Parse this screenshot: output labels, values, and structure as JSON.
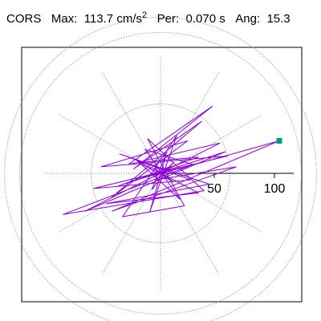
{
  "header": {
    "station": "CORS",
    "max_label": "Max:",
    "max_value": "113.7",
    "max_unit_base": "cm/s",
    "max_unit_exp": "2",
    "per_label": "Per:",
    "per_value": "0.070 s",
    "ang_label": "Ang:",
    "ang_value": "15.3"
  },
  "chart_data": {
    "type": "polar-trace",
    "title": "CORS   Max:  113.7 cm/s2  Per:  0.070 s   Ang:  15.3",
    "rings": [
      50,
      100,
      150
    ],
    "radial_lines_every_deg": 30,
    "tick_labels": [
      "50",
      "100"
    ],
    "trace_color": "#8b00d8",
    "marker_color": "#00a070",
    "peak_point": {
      "x": 109.6,
      "y": 30.0
    },
    "trace": [
      {
        "x": 0,
        "y": 0
      },
      {
        "x": 8,
        "y": 3
      },
      {
        "x": -6,
        "y": 5
      },
      {
        "x": 12,
        "y": -8
      },
      {
        "x": -20,
        "y": 10
      },
      {
        "x": 35,
        "y": 15
      },
      {
        "x": -40,
        "y": -12
      },
      {
        "x": 60,
        "y": 20
      },
      {
        "x": -70,
        "y": -35
      },
      {
        "x": 55,
        "y": 28
      },
      {
        "x": -30,
        "y": 8
      },
      {
        "x": 48,
        "y": 62
      },
      {
        "x": -25,
        "y": 4
      },
      {
        "x": 38,
        "y": 48
      },
      {
        "x": -45,
        "y": -22
      },
      {
        "x": 25,
        "y": 30
      },
      {
        "x": -55,
        "y": 6
      },
      {
        "x": 62,
        "y": 16
      },
      {
        "x": -62,
        "y": -14
      },
      {
        "x": 28,
        "y": -6
      },
      {
        "x": -38,
        "y": 18
      },
      {
        "x": 45,
        "y": -10
      },
      {
        "x": -50,
        "y": -28
      },
      {
        "x": 35,
        "y": -18
      },
      {
        "x": -22,
        "y": 12
      },
      {
        "x": 18,
        "y": -24
      },
      {
        "x": -14,
        "y": 22
      },
      {
        "x": 30,
        "y": 8
      },
      {
        "x": -90,
        "y": -38
      },
      {
        "x": 40,
        "y": -16
      },
      {
        "x": -12,
        "y": 32
      },
      {
        "x": 22,
        "y": -30
      },
      {
        "x": -35,
        "y": -40
      },
      {
        "x": 15,
        "y": 35
      },
      {
        "x": -10,
        "y": -36
      },
      {
        "x": 6,
        "y": 20
      },
      {
        "x": -8,
        "y": -15
      },
      {
        "x": 12,
        "y": 10
      },
      {
        "x": -4,
        "y": -6
      },
      {
        "x": 70,
        "y": 6
      },
      {
        "x": -45,
        "y": -35
      },
      {
        "x": 109.6,
        "y": 30.0
      },
      {
        "x": 20,
        "y": 5
      },
      {
        "x": -16,
        "y": -4
      },
      {
        "x": 8,
        "y": 6
      },
      {
        "x": -5,
        "y": -3
      },
      {
        "x": 3,
        "y": 2
      },
      {
        "x": 0,
        "y": 0
      }
    ]
  }
}
